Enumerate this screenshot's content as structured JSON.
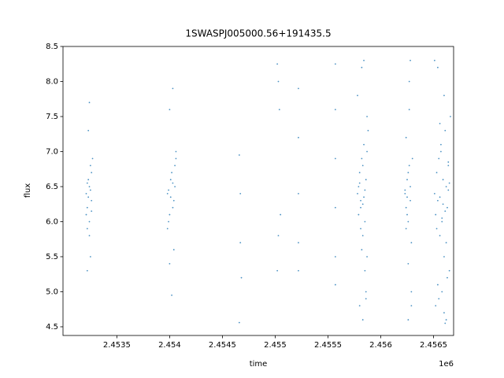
{
  "chart_data": {
    "type": "scatter",
    "title": "1SWASPJ005000.56+191435.5",
    "xlabel": "time",
    "ylabel": "flux",
    "x_offset_label": "1e6",
    "color": "#1f77b4",
    "xlim": [
      2.45299,
      2.45669
    ],
    "ylim": [
      4.376,
      8.5
    ],
    "xticks": [
      2.4535,
      2.454,
      2.4545,
      2.455,
      2.4555,
      2.456,
      2.4565
    ],
    "yticks": [
      4.5,
      {
        "value": 5,
        "label": "5.0"
      },
      5.5,
      {
        "value": 6,
        "label": "6.0"
      },
      6.5,
      {
        "value": 7,
        "label": "7.0"
      },
      7.5,
      {
        "value": 8,
        "label": "8.0"
      },
      8.5
    ],
    "x": [
      2.45321,
      2.45322,
      2.45323,
      2.45324,
      2.45325,
      2.45326,
      2.45322,
      2.45324,
      2.45326,
      2.45323,
      2.45325,
      2.45321,
      2.45327,
      2.45324,
      2.45322,
      2.45323,
      2.45325,
      2.45322,
      2.45326,
      2.45324,
      2.45398,
      2.454,
      2.45402,
      2.45404,
      2.45406,
      2.45399,
      2.45401,
      2.45403,
      2.45405,
      2.454,
      2.45404,
      2.45402,
      2.45398,
      2.45406,
      2.45403,
      2.45399,
      2.45401,
      2.45405,
      2.45403,
      2.454,
      2.45466,
      2.45467,
      2.45467,
      2.45468,
      2.45466,
      2.45502,
      2.45503,
      2.45504,
      2.45505,
      2.45503,
      2.45502,
      2.45522,
      2.45522,
      2.45522,
      2.45522,
      2.45522,
      2.45557,
      2.45557,
      2.45557,
      2.45557,
      2.45557,
      2.45557,
      2.45578,
      2.45579,
      2.4558,
      2.45581,
      2.45582,
      2.45583,
      2.45584,
      2.45585,
      2.45586,
      2.45587,
      2.45588,
      2.45579,
      2.45581,
      2.45583,
      2.45585,
      2.45587,
      2.4558,
      2.45582,
      2.45584,
      2.45586,
      2.45578,
      2.45583,
      2.45585,
      2.45581,
      2.45587,
      2.45584,
      2.45582,
      2.4558,
      2.45586,
      2.45583,
      2.45623,
      2.45624,
      2.45625,
      2.45626,
      2.45627,
      2.45628,
      2.45629,
      2.4563,
      2.45624,
      2.45626,
      2.45628,
      2.45625,
      2.45627,
      2.45629,
      2.45623,
      2.45626,
      2.45628,
      2.45625,
      2.45624,
      2.45627,
      2.45626,
      2.45629,
      2.45651,
      2.45652,
      2.45653,
      2.45654,
      2.45655,
      2.45656,
      2.45657,
      2.45658,
      2.45659,
      2.4566,
      2.45661,
      2.45662,
      2.45663,
      2.45664,
      2.45665,
      2.45666,
      2.45652,
      2.45654,
      2.45656,
      2.45658,
      2.4566,
      2.45662,
      2.45664,
      2.45653,
      2.45657,
      2.45661,
      2.45665,
      2.45655,
      2.45659,
      2.45663,
      2.45651,
      2.45658,
      2.45662,
      2.45656,
      2.4566,
      2.45664,
      2.45654,
      2.45661
    ],
    "y": [
      6.4,
      6.2,
      6.6,
      6.0,
      6.8,
      6.3,
      5.9,
      6.5,
      6.7,
      7.3,
      5.5,
      6.1,
      6.9,
      7.7,
      5.3,
      6.35,
      6.45,
      6.55,
      6.15,
      5.8,
      6.4,
      6.1,
      6.7,
      6.3,
      6.9,
      6.0,
      6.6,
      6.2,
      6.5,
      7.6,
      5.6,
      4.95,
      5.9,
      7.0,
      7.9,
      6.45,
      6.35,
      6.8,
      6.55,
      5.4,
      6.95,
      6.4,
      5.7,
      5.2,
      4.56,
      8.25,
      8.0,
      7.6,
      6.1,
      5.8,
      5.3,
      7.9,
      7.2,
      6.4,
      5.7,
      5.3,
      8.25,
      7.6,
      6.9,
      6.2,
      5.5,
      5.1,
      6.4,
      6.1,
      6.7,
      6.3,
      6.9,
      5.8,
      7.1,
      6.0,
      6.6,
      5.5,
      7.3,
      6.5,
      6.2,
      6.8,
      5.3,
      7.5,
      4.8,
      8.2,
      6.35,
      5.0,
      7.8,
      4.6,
      6.45,
      5.9,
      7.0,
      8.3,
      5.6,
      6.55,
      4.9,
      6.25,
      6.4,
      6.2,
      6.6,
      6.0,
      6.8,
      6.3,
      5.7,
      6.9,
      7.2,
      5.4,
      6.5,
      6.1,
      7.6,
      5.0,
      6.45,
      4.6,
      8.3,
      6.35,
      5.9,
      8.0,
      6.7,
      4.8,
      6.4,
      6.1,
      6.7,
      6.3,
      6.9,
      5.8,
      7.1,
      6.0,
      6.6,
      5.5,
      7.3,
      6.5,
      6.2,
      6.8,
      5.3,
      7.5,
      4.8,
      8.2,
      6.35,
      5.0,
      7.8,
      4.6,
      6.45,
      5.9,
      7.0,
      4.55,
      6.55,
      4.9,
      6.25,
      5.2,
      8.3,
      6.05,
      5.7,
      7.4,
      4.7,
      6.85,
      5.1,
      6.15
    ]
  }
}
